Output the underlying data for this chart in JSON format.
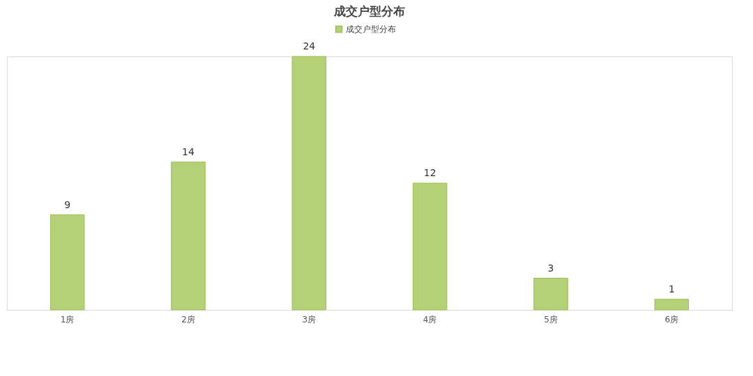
{
  "chart_data": {
    "type": "bar",
    "title": "成交户型分布",
    "categories": [
      "1房",
      "2房",
      "3房",
      "4房",
      "5房",
      "6房"
    ],
    "series": [
      {
        "name": "成交户型分布",
        "color": "#b5d178",
        "values": [
          9,
          14,
          24,
          12,
          3,
          1
        ]
      }
    ],
    "data_labels": true,
    "legend": "top",
    "grid": false
  }
}
